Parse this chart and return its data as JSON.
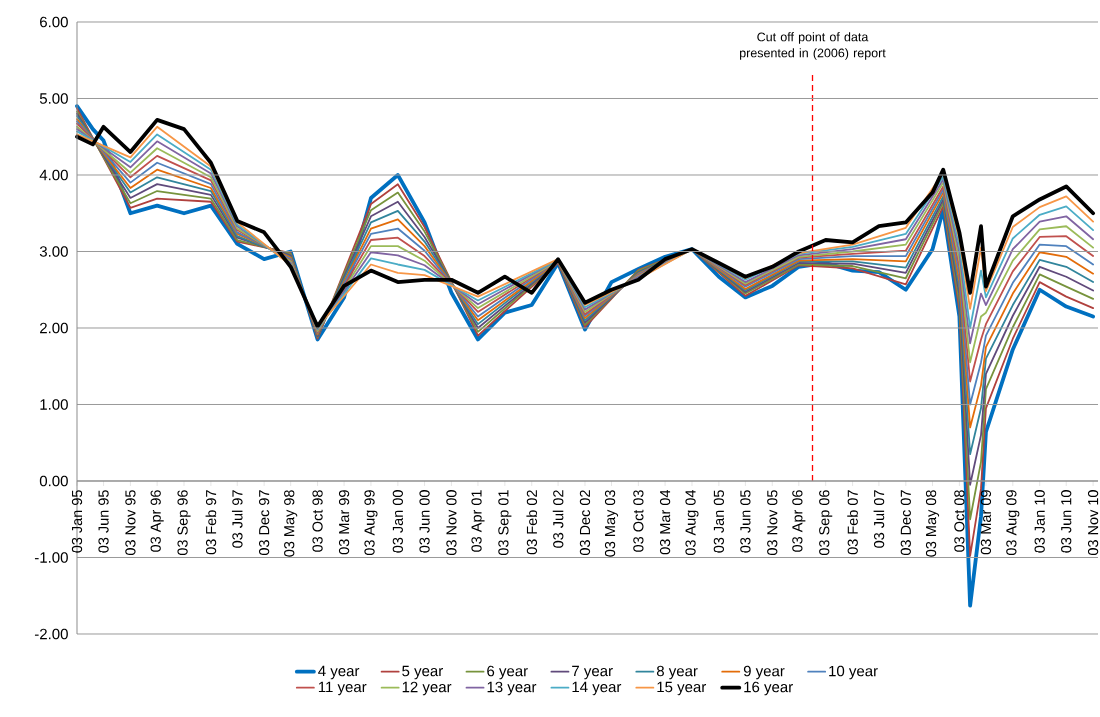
{
  "chart_data": {
    "type": "line",
    "legend": "bottom",
    "grid": "y",
    "line_style": "solid",
    "xlim": [
      "1995-01-03",
      "2010-12-01"
    ],
    "ylim": [
      -2,
      6
    ],
    "yticks": [
      {
        "value": -2,
        "label": "-2.00"
      },
      {
        "value": -1,
        "label": "-1.00"
      },
      {
        "value": 0,
        "label": "0.00"
      },
      {
        "value": 1,
        "label": "1.00"
      },
      {
        "value": 2,
        "label": "2.00"
      },
      {
        "value": 3,
        "label": "3.00"
      },
      {
        "value": 4,
        "label": "4.00"
      },
      {
        "value": 5,
        "label": "5.00"
      },
      {
        "value": 6,
        "label": "6.00"
      }
    ],
    "xticks": [
      {
        "value": "1995-01-03",
        "label": "03 Jan 95"
      },
      {
        "value": "1995-06-03",
        "label": "03 Jun 95"
      },
      {
        "value": "1995-11-03",
        "label": "03 Nov 95"
      },
      {
        "value": "1996-04-03",
        "label": "03 Apr 96"
      },
      {
        "value": "1996-09-03",
        "label": "03 Sep 96"
      },
      {
        "value": "1997-02-03",
        "label": "03 Feb 97"
      },
      {
        "value": "1997-07-03",
        "label": "03 Jul 97"
      },
      {
        "value": "1997-12-03",
        "label": "03 Dec 97"
      },
      {
        "value": "1998-05-03",
        "label": "03 May 98"
      },
      {
        "value": "1998-10-03",
        "label": "03 Oct 98"
      },
      {
        "value": "1999-03-03",
        "label": "03 Mar 99"
      },
      {
        "value": "1999-08-03",
        "label": "03 Aug 99"
      },
      {
        "value": "2000-01-03",
        "label": "03 Jan 00"
      },
      {
        "value": "2000-06-03",
        "label": "03 Jun 00"
      },
      {
        "value": "2000-11-03",
        "label": "03 Nov 00"
      },
      {
        "value": "2001-04-03",
        "label": "03 Apr 01"
      },
      {
        "value": "2001-09-03",
        "label": "03 Sep 01"
      },
      {
        "value": "2002-02-03",
        "label": "03 Feb 02"
      },
      {
        "value": "2002-07-03",
        "label": "03 Jul 02"
      },
      {
        "value": "2002-12-03",
        "label": "03 Dec 02"
      },
      {
        "value": "2003-05-03",
        "label": "03 May 03"
      },
      {
        "value": "2003-10-03",
        "label": "03 Oct 03"
      },
      {
        "value": "2004-03-03",
        "label": "03 Mar 04"
      },
      {
        "value": "2004-08-03",
        "label": "03 Aug 04"
      },
      {
        "value": "2005-01-03",
        "label": "03 Jan 05"
      },
      {
        "value": "2005-06-03",
        "label": "03 Jun 05"
      },
      {
        "value": "2005-11-03",
        "label": "03 Nov 05"
      },
      {
        "value": "2006-04-03",
        "label": "03 Apr 06"
      },
      {
        "value": "2006-09-03",
        "label": "03 Sep 06"
      },
      {
        "value": "2007-02-03",
        "label": "03 Feb 07"
      },
      {
        "value": "2007-07-03",
        "label": "03 Jul 07"
      },
      {
        "value": "2007-12-03",
        "label": "03 Dec 07"
      },
      {
        "value": "2008-05-03",
        "label": "03 May 08"
      },
      {
        "value": "2008-10-03",
        "label": "03 Oct 08"
      },
      {
        "value": "2009-03-03",
        "label": "03 Mar 09"
      },
      {
        "value": "2009-08-03",
        "label": "03 Aug 09"
      },
      {
        "value": "2010-01-03",
        "label": "03 Jan 10"
      },
      {
        "value": "2010-06-03",
        "label": "03 Jun 10"
      },
      {
        "value": "2010-11-03",
        "label": "03 Nov 10"
      }
    ],
    "ref_lines": [
      {
        "axis": "x",
        "value": "2006-06-20",
        "label": "Cut off point of data presented in (2006) report",
        "color": "#ff0000",
        "line_style": "dashed"
      }
    ],
    "series": [
      {
        "name": "4 year",
        "color": "#0070c0",
        "x": [
          "1995-01-03",
          "1995-04-03",
          "1995-06-03",
          "1995-11-03",
          "1996-04-03",
          "1996-09-03",
          "1997-02-03",
          "1997-07-03",
          "1997-12-03",
          "1998-05-03",
          "1998-10-03",
          "1999-03-03",
          "1999-08-03",
          "2000-01-03",
          "2000-06-03",
          "2000-11-03",
          "2001-04-03",
          "2001-09-03",
          "2002-02-03",
          "2002-07-03",
          "2002-12-03",
          "2003-05-03",
          "2003-10-03",
          "2004-03-03",
          "2004-08-03",
          "2005-01-03",
          "2005-06-03",
          "2005-11-03",
          "2006-04-03",
          "2006-09-03",
          "2007-02-03",
          "2007-07-03",
          "2007-12-03",
          "2008-05-03",
          "2008-07-03",
          "2008-10-03",
          "2008-12-03",
          "2009-02-03",
          "2009-03-03",
          "2009-08-03",
          "2010-01-03",
          "2010-06-03",
          "2010-11-03"
        ],
        "values": [
          4.9,
          4.6,
          4.45,
          3.5,
          3.6,
          3.5,
          3.6,
          3.1,
          2.9,
          3.0,
          1.85,
          2.4,
          3.7,
          4.0,
          3.38,
          2.46,
          1.85,
          2.2,
          2.3,
          2.85,
          1.98,
          2.6,
          2.77,
          2.93,
          3.03,
          2.67,
          2.4,
          2.55,
          2.8,
          2.85,
          2.75,
          2.73,
          2.5,
          3.03,
          3.55,
          2.15,
          -1.63,
          -0.46,
          0.64,
          1.72,
          2.5,
          2.28,
          2.15
        ]
      },
      {
        "name": "5 year",
        "color": "#b0413e",
        "x": [
          "1995-01-03",
          "1995-11-03",
          "1996-04-03",
          "1997-02-03",
          "1997-07-03",
          "1998-05-03",
          "1998-10-03",
          "1999-08-03",
          "2000-01-03",
          "2000-06-03",
          "2001-04-03",
          "2002-07-03",
          "2002-12-03",
          "2003-10-03",
          "2004-08-03",
          "2005-06-03",
          "2006-04-03",
          "2007-02-03",
          "2007-12-03",
          "2008-07-03",
          "2008-10-03",
          "2008-12-03",
          "2009-02-03",
          "2009-03-03",
          "2009-08-03",
          "2010-01-03",
          "2010-06-03",
          "2010-11-03"
        ],
        "values": [
          4.87,
          3.57,
          3.69,
          3.65,
          3.13,
          2.98,
          1.86,
          3.62,
          3.88,
          3.32,
          1.9,
          2.85,
          2.01,
          2.76,
          3.03,
          2.42,
          2.82,
          2.78,
          2.57,
          3.59,
          2.24,
          -0.98,
          -0.1,
          0.95,
          1.86,
          2.6,
          2.41,
          2.26
        ]
      },
      {
        "name": "6 year",
        "color": "#77933c",
        "x": [
          "1995-01-03",
          "1995-11-03",
          "1996-04-03",
          "1997-02-03",
          "1997-07-03",
          "1998-05-03",
          "1998-10-03",
          "1999-08-03",
          "2000-01-03",
          "2000-06-03",
          "2001-04-03",
          "2002-07-03",
          "2002-12-03",
          "2003-10-03",
          "2004-08-03",
          "2005-06-03",
          "2006-04-03",
          "2007-02-03",
          "2007-12-03",
          "2008-07-03",
          "2008-10-03",
          "2008-12-03",
          "2009-02-03",
          "2009-03-03",
          "2009-08-03",
          "2010-01-03",
          "2010-06-03",
          "2010-11-03"
        ],
        "values": [
          4.83,
          3.63,
          3.79,
          3.69,
          3.15,
          2.97,
          1.88,
          3.54,
          3.77,
          3.26,
          1.95,
          2.86,
          2.04,
          2.75,
          3.03,
          2.45,
          2.83,
          2.81,
          2.65,
          3.64,
          2.33,
          -0.5,
          0.25,
          1.2,
          2.01,
          2.7,
          2.54,
          2.38
        ]
      },
      {
        "name": "7 year",
        "color": "#604a7b",
        "x": [
          "1995-01-03",
          "1995-11-03",
          "1996-04-03",
          "1997-02-03",
          "1997-07-03",
          "1998-05-03",
          "1998-10-03",
          "1999-08-03",
          "2000-01-03",
          "2000-06-03",
          "2001-04-03",
          "2002-07-03",
          "2002-12-03",
          "2003-10-03",
          "2004-08-03",
          "2005-06-03",
          "2006-04-03",
          "2007-02-03",
          "2007-12-03",
          "2008-07-03",
          "2008-10-03",
          "2008-12-03",
          "2009-02-03",
          "2009-03-03",
          "2009-08-03",
          "2010-01-03",
          "2010-06-03",
          "2010-11-03"
        ],
        "values": [
          4.8,
          3.7,
          3.88,
          3.74,
          3.18,
          2.95,
          1.89,
          3.46,
          3.65,
          3.19,
          2.0,
          2.86,
          2.07,
          2.73,
          3.03,
          2.47,
          2.85,
          2.84,
          2.72,
          3.68,
          2.43,
          -0.05,
          0.6,
          1.4,
          2.16,
          2.8,
          2.67,
          2.49
        ]
      },
      {
        "name": "8 year",
        "color": "#31859c",
        "x": [
          "1995-01-03",
          "1995-11-03",
          "1996-04-03",
          "1997-02-03",
          "1997-07-03",
          "1998-05-03",
          "1998-10-03",
          "1999-08-03",
          "2000-01-03",
          "2000-06-03",
          "2001-04-03",
          "2002-07-03",
          "2002-12-03",
          "2003-10-03",
          "2004-08-03",
          "2005-06-03",
          "2006-04-03",
          "2007-02-03",
          "2007-12-03",
          "2008-07-03",
          "2008-10-03",
          "2008-12-03",
          "2009-02-03",
          "2009-03-03",
          "2009-08-03",
          "2010-01-03",
          "2010-06-03",
          "2010-11-03"
        ],
        "values": [
          4.77,
          3.77,
          3.97,
          3.79,
          3.2,
          2.93,
          1.91,
          3.38,
          3.53,
          3.13,
          2.05,
          2.87,
          2.1,
          2.72,
          3.03,
          2.49,
          2.87,
          2.87,
          2.79,
          3.72,
          2.52,
          0.35,
          0.95,
          1.6,
          2.3,
          2.89,
          2.8,
          2.6
        ]
      },
      {
        "name": "9 year",
        "color": "#e36c09",
        "x": [
          "1995-01-03",
          "1995-11-03",
          "1996-04-03",
          "1997-02-03",
          "1997-07-03",
          "1998-05-03",
          "1998-10-03",
          "1999-08-03",
          "2000-01-03",
          "2000-06-03",
          "2001-04-03",
          "2002-07-03",
          "2002-12-03",
          "2003-10-03",
          "2004-08-03",
          "2005-06-03",
          "2006-04-03",
          "2007-02-03",
          "2007-12-03",
          "2008-07-03",
          "2008-10-03",
          "2008-12-03",
          "2009-02-03",
          "2009-03-03",
          "2009-08-03",
          "2010-01-03",
          "2010-06-03",
          "2010-11-03"
        ],
        "values": [
          4.73,
          3.83,
          4.07,
          3.83,
          3.23,
          2.92,
          1.92,
          3.3,
          3.42,
          3.07,
          2.1,
          2.87,
          2.13,
          2.71,
          3.03,
          2.51,
          2.88,
          2.9,
          2.87,
          3.77,
          2.61,
          0.7,
          1.25,
          1.75,
          2.45,
          2.99,
          2.93,
          2.71
        ]
      },
      {
        "name": "10 year",
        "color": "#4f81bd",
        "x": [
          "1995-01-03",
          "1995-11-03",
          "1996-04-03",
          "1997-02-03",
          "1997-07-03",
          "1998-05-03",
          "1998-10-03",
          "1999-08-03",
          "2000-01-03",
          "2000-06-03",
          "2001-04-03",
          "2002-07-03",
          "2002-12-03",
          "2003-10-03",
          "2004-08-03",
          "2005-06-03",
          "2006-04-03",
          "2007-02-03",
          "2007-12-03",
          "2008-07-03",
          "2008-10-03",
          "2008-12-03",
          "2009-02-03",
          "2009-03-03",
          "2009-08-03",
          "2010-01-03",
          "2010-06-03",
          "2010-11-03"
        ],
        "values": [
          4.7,
          3.9,
          4.16,
          3.88,
          3.25,
          2.9,
          1.94,
          3.23,
          3.3,
          3.01,
          2.15,
          2.88,
          2.16,
          2.7,
          3.03,
          2.54,
          2.9,
          2.94,
          2.94,
          3.81,
          2.7,
          1.0,
          1.55,
          1.9,
          2.59,
          3.09,
          3.07,
          2.83
        ]
      },
      {
        "name": "11 year",
        "color": "#c0504d",
        "x": [
          "1995-01-03",
          "1995-11-03",
          "1996-04-03",
          "1997-02-03",
          "1997-07-03",
          "1998-05-03",
          "1998-10-03",
          "1999-08-03",
          "2000-01-03",
          "2000-06-03",
          "2001-04-03",
          "2002-07-03",
          "2002-12-03",
          "2003-10-03",
          "2004-08-03",
          "2005-06-03",
          "2006-04-03",
          "2007-02-03",
          "2007-12-03",
          "2008-07-03",
          "2008-10-03",
          "2008-12-03",
          "2009-02-03",
          "2009-03-03",
          "2009-08-03",
          "2010-01-03",
          "2010-06-03",
          "2010-11-03"
        ],
        "values": [
          4.67,
          3.97,
          4.25,
          3.93,
          3.28,
          2.88,
          1.95,
          3.15,
          3.18,
          2.94,
          2.21,
          2.88,
          2.18,
          2.69,
          3.03,
          2.56,
          2.92,
          2.97,
          3.01,
          3.85,
          2.79,
          1.3,
          1.85,
          2.05,
          2.74,
          3.19,
          3.2,
          2.94
        ]
      },
      {
        "name": "12 year",
        "color": "#9bbb59",
        "x": [
          "1995-01-03",
          "1995-11-03",
          "1996-04-03",
          "1997-02-03",
          "1997-07-03",
          "1998-05-03",
          "1998-10-03",
          "1999-08-03",
          "2000-01-03",
          "2000-06-03",
          "2001-04-03",
          "2002-07-03",
          "2002-12-03",
          "2003-10-03",
          "2004-08-03",
          "2005-06-03",
          "2006-04-03",
          "2007-02-03",
          "2007-12-03",
          "2008-07-03",
          "2008-10-03",
          "2008-12-03",
          "2009-02-03",
          "2009-03-03",
          "2009-08-03",
          "2010-01-03",
          "2010-06-03",
          "2010-11-03"
        ],
        "values": [
          4.63,
          4.03,
          4.35,
          3.97,
          3.3,
          2.87,
          1.96,
          3.07,
          3.07,
          2.88,
          2.26,
          2.88,
          2.21,
          2.68,
          3.03,
          2.58,
          2.93,
          3.0,
          3.09,
          3.9,
          2.88,
          1.55,
          2.15,
          2.2,
          2.88,
          3.29,
          3.33,
          3.05
        ]
      },
      {
        "name": "13 year",
        "color": "#8064a2",
        "x": [
          "1995-01-03",
          "1995-11-03",
          "1996-04-03",
          "1997-02-03",
          "1997-07-03",
          "1998-05-03",
          "1998-10-03",
          "1999-08-03",
          "2000-01-03",
          "2000-06-03",
          "2001-04-03",
          "2002-07-03",
          "2002-12-03",
          "2003-10-03",
          "2004-08-03",
          "2005-06-03",
          "2006-04-03",
          "2007-02-03",
          "2007-12-03",
          "2008-07-03",
          "2008-10-03",
          "2008-12-03",
          "2009-02-03",
          "2009-03-03",
          "2009-08-03",
          "2010-01-03",
          "2010-06-03",
          "2010-11-03"
        ],
        "values": [
          4.6,
          4.1,
          4.44,
          4.02,
          3.33,
          2.85,
          1.98,
          2.99,
          2.95,
          2.82,
          2.31,
          2.89,
          2.24,
          2.67,
          3.03,
          2.6,
          2.95,
          3.03,
          3.16,
          3.94,
          2.98,
          1.8,
          2.45,
          2.3,
          3.03,
          3.39,
          3.46,
          3.16
        ]
      },
      {
        "name": "14 year",
        "color": "#4bacc6",
        "x": [
          "1995-01-03",
          "1995-11-03",
          "1996-04-03",
          "1997-02-03",
          "1997-07-03",
          "1998-05-03",
          "1998-10-03",
          "1999-08-03",
          "2000-01-03",
          "2000-06-03",
          "2001-04-03",
          "2002-07-03",
          "2002-12-03",
          "2003-10-03",
          "2004-08-03",
          "2005-06-03",
          "2006-04-03",
          "2007-02-03",
          "2007-12-03",
          "2008-07-03",
          "2008-10-03",
          "2008-12-03",
          "2009-02-03",
          "2009-03-03",
          "2009-08-03",
          "2010-01-03",
          "2010-06-03",
          "2010-11-03"
        ],
        "values": [
          4.57,
          4.17,
          4.53,
          4.07,
          3.35,
          2.83,
          1.99,
          2.91,
          2.83,
          2.76,
          2.36,
          2.89,
          2.27,
          2.65,
          3.03,
          2.63,
          2.97,
          3.06,
          3.23,
          3.98,
          3.07,
          2.0,
          2.75,
          2.4,
          3.17,
          3.48,
          3.59,
          3.28
        ]
      },
      {
        "name": "15 year",
        "color": "#f79646",
        "x": [
          "1995-01-03",
          "1995-11-03",
          "1996-04-03",
          "1997-02-03",
          "1997-07-03",
          "1998-05-03",
          "1998-10-03",
          "1999-08-03",
          "2000-01-03",
          "2000-06-03",
          "2001-04-03",
          "2002-07-03",
          "2002-12-03",
          "2003-10-03",
          "2004-08-03",
          "2005-06-03",
          "2006-04-03",
          "2007-02-03",
          "2007-12-03",
          "2008-07-03",
          "2008-10-03",
          "2008-12-03",
          "2009-02-03",
          "2009-03-03",
          "2009-08-03",
          "2010-01-03",
          "2010-06-03",
          "2010-11-03"
        ],
        "values": [
          4.53,
          4.23,
          4.63,
          4.11,
          3.38,
          2.82,
          2.01,
          2.83,
          2.72,
          2.69,
          2.41,
          2.9,
          2.3,
          2.64,
          3.03,
          2.65,
          2.98,
          3.09,
          3.31,
          4.03,
          3.16,
          2.25,
          3.05,
          2.48,
          3.32,
          3.58,
          3.72,
          3.39
        ]
      },
      {
        "name": "16 year",
        "color": "#000000",
        "x": [
          "1995-01-03",
          "1995-04-03",
          "1995-06-03",
          "1995-11-03",
          "1996-04-03",
          "1996-09-03",
          "1997-02-03",
          "1997-07-03",
          "1997-12-03",
          "1998-05-03",
          "1998-10-03",
          "1999-03-03",
          "1999-08-03",
          "2000-01-03",
          "2000-06-03",
          "2000-11-03",
          "2001-04-03",
          "2001-09-03",
          "2002-02-03",
          "2002-07-03",
          "2002-12-03",
          "2003-05-03",
          "2003-10-03",
          "2004-03-03",
          "2004-08-03",
          "2005-01-03",
          "2005-06-03",
          "2005-11-03",
          "2006-04-03",
          "2006-09-03",
          "2007-02-03",
          "2007-07-03",
          "2007-12-03",
          "2008-05-03",
          "2008-07-03",
          "2008-10-03",
          "2008-12-03",
          "2009-02-03",
          "2009-03-03",
          "2009-08-03",
          "2010-01-03",
          "2010-06-03",
          "2010-11-03"
        ],
        "values": [
          4.5,
          4.4,
          4.63,
          4.3,
          4.72,
          4.6,
          4.16,
          3.4,
          3.25,
          2.8,
          2.02,
          2.55,
          2.75,
          2.6,
          2.63,
          2.63,
          2.46,
          2.67,
          2.46,
          2.9,
          2.33,
          2.5,
          2.63,
          2.9,
          3.03,
          2.85,
          2.67,
          2.8,
          3.0,
          3.15,
          3.12,
          3.33,
          3.38,
          3.77,
          4.07,
          3.25,
          2.46,
          3.33,
          2.54,
          3.46,
          3.68,
          3.85,
          3.5
        ]
      }
    ]
  }
}
